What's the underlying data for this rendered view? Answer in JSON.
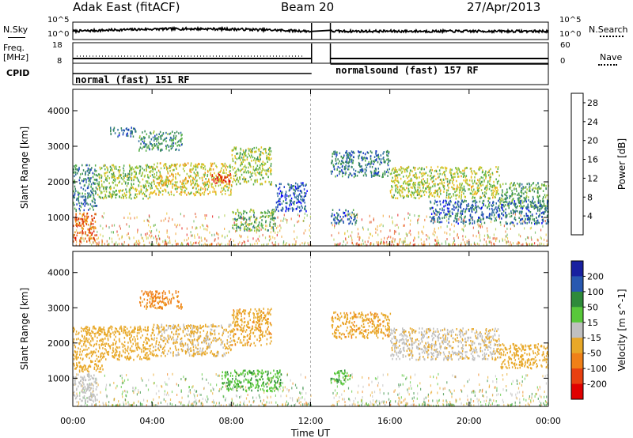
{
  "header": {
    "station": "Adak East (fitACF)",
    "beam": "Beam 20",
    "date": "27/Apr/2013"
  },
  "left_labels": {
    "nsky": "N.Sky",
    "freq": "Freq.",
    "freq_unit": "[MHz]",
    "cpid": "CPID"
  },
  "right_labels": {
    "nsearch": "N.Search",
    "nave": "Nave"
  },
  "noise_panel": {
    "left_ticks": [
      "10^5",
      "10^0"
    ],
    "right_ticks": [
      "10^5",
      "10^0"
    ]
  },
  "freq_panel": {
    "left_ticks": [
      "18",
      "8"
    ],
    "right_ticks": [
      "60",
      "0"
    ]
  },
  "cpid_panel": {
    "segments": [
      {
        "label": "normal (fast) 151 RF",
        "start": "00:00",
        "end": "12:00"
      },
      {
        "label": "normalsound (fast) 157 RF",
        "start": "13:00",
        "end": "24:00"
      }
    ]
  },
  "chart_data": [
    {
      "type": "heatmap",
      "title": "",
      "xlabel": "",
      "ylabel": "Slant Range [km]",
      "xlim": [
        0,
        24
      ],
      "ylim": [
        200,
        4600
      ],
      "xticks": [
        "00:00",
        "04:00",
        "08:00",
        "12:00",
        "16:00",
        "20:00",
        "00:00"
      ],
      "yticks": [
        1000,
        2000,
        3000,
        4000
      ],
      "colorbar": {
        "label": "Power [dB]",
        "ticks": [
          "4",
          "8",
          "12",
          "16",
          "20",
          "24",
          "28"
        ],
        "range": [
          0,
          30
        ]
      },
      "data_gap": [
        12.0,
        13.0
      ],
      "regions": [
        {
          "t": [
            0,
            1.2
          ],
          "r": [
            350,
            1150
          ],
          "v": 24
        },
        {
          "t": [
            0,
            1.2
          ],
          "r": [
            1200,
            2500
          ],
          "v": 8
        },
        {
          "t": [
            1.2,
            4.0
          ],
          "r": [
            1550,
            2500
          ],
          "v": 14
        },
        {
          "t": [
            4.0,
            8.0
          ],
          "r": [
            1650,
            2550
          ],
          "v": 17
        },
        {
          "t": [
            7.0,
            8.0
          ],
          "r": [
            1950,
            2250
          ],
          "v": 27
        },
        {
          "t": [
            8.0,
            10.0
          ],
          "r": [
            1950,
            3000
          ],
          "v": 14
        },
        {
          "t": [
            3.3,
            5.5
          ],
          "r": [
            2900,
            3450
          ],
          "v": 9
        },
        {
          "t": [
            1.8,
            3.2
          ],
          "r": [
            3300,
            3550
          ],
          "v": 6
        },
        {
          "t": [
            8.0,
            10.2
          ],
          "r": [
            650,
            1250
          ],
          "v": 12
        },
        {
          "t": [
            10.2,
            11.8
          ],
          "r": [
            1200,
            2000
          ],
          "v": 5
        },
        {
          "t": [
            13.0,
            14.3
          ],
          "r": [
            850,
            1250
          ],
          "v": 6
        },
        {
          "t": [
            13.0,
            16.0
          ],
          "r": [
            2150,
            2900
          ],
          "v": 7
        },
        {
          "t": [
            16.0,
            21.5
          ],
          "r": [
            1550,
            2450
          ],
          "v": 15
        },
        {
          "t": [
            21.5,
            24.0
          ],
          "r": [
            1300,
            2000
          ],
          "v": 11
        },
        {
          "t": [
            18.0,
            24.0
          ],
          "r": [
            850,
            1500
          ],
          "v": 6
        }
      ]
    },
    {
      "type": "heatmap",
      "title": "",
      "xlabel": "Time UT",
      "ylabel": "Slant Range [km]",
      "xlim": [
        0,
        24
      ],
      "ylim": [
        200,
        4600
      ],
      "xticks": [
        "00:00",
        "04:00",
        "08:00",
        "12:00",
        "16:00",
        "20:00",
        "00:00"
      ],
      "yticks": [
        1000,
        2000,
        3000,
        4000
      ],
      "colorbar": {
        "label": "Velocity [m s^-1]",
        "ticks": [
          "200",
          "100",
          "50",
          "15",
          "-15",
          "-50",
          "-100",
          "-200"
        ]
      },
      "data_gap": [
        12.0,
        13.0
      ],
      "regions": [
        {
          "t": [
            0,
            1.2
          ],
          "r": [
            350,
            1150
          ],
          "v": 0
        },
        {
          "t": [
            0,
            1.5
          ],
          "r": [
            1200,
            2500
          ],
          "v": -30
        },
        {
          "t": [
            1.5,
            4.0
          ],
          "r": [
            1550,
            2500
          ],
          "v": -30
        },
        {
          "t": [
            4.0,
            8.0
          ],
          "r": [
            1650,
            2550
          ],
          "v": -20
        },
        {
          "t": [
            8.0,
            10.0
          ],
          "r": [
            1950,
            3000
          ],
          "v": -40
        },
        {
          "t": [
            3.3,
            5.5
          ],
          "r": [
            3000,
            3500
          ],
          "v": -60
        },
        {
          "t": [
            7.5,
            10.5
          ],
          "r": [
            650,
            1250
          ],
          "v": 30
        },
        {
          "t": [
            13.0,
            14.0
          ],
          "r": [
            850,
            1250
          ],
          "v": 30
        },
        {
          "t": [
            13.0,
            16.0
          ],
          "r": [
            2150,
            2900
          ],
          "v": -40
        },
        {
          "t": [
            16.0,
            21.5
          ],
          "r": [
            1550,
            2450
          ],
          "v": -10
        },
        {
          "t": [
            21.5,
            24.0
          ],
          "r": [
            1300,
            2000
          ],
          "v": -30
        }
      ]
    }
  ]
}
